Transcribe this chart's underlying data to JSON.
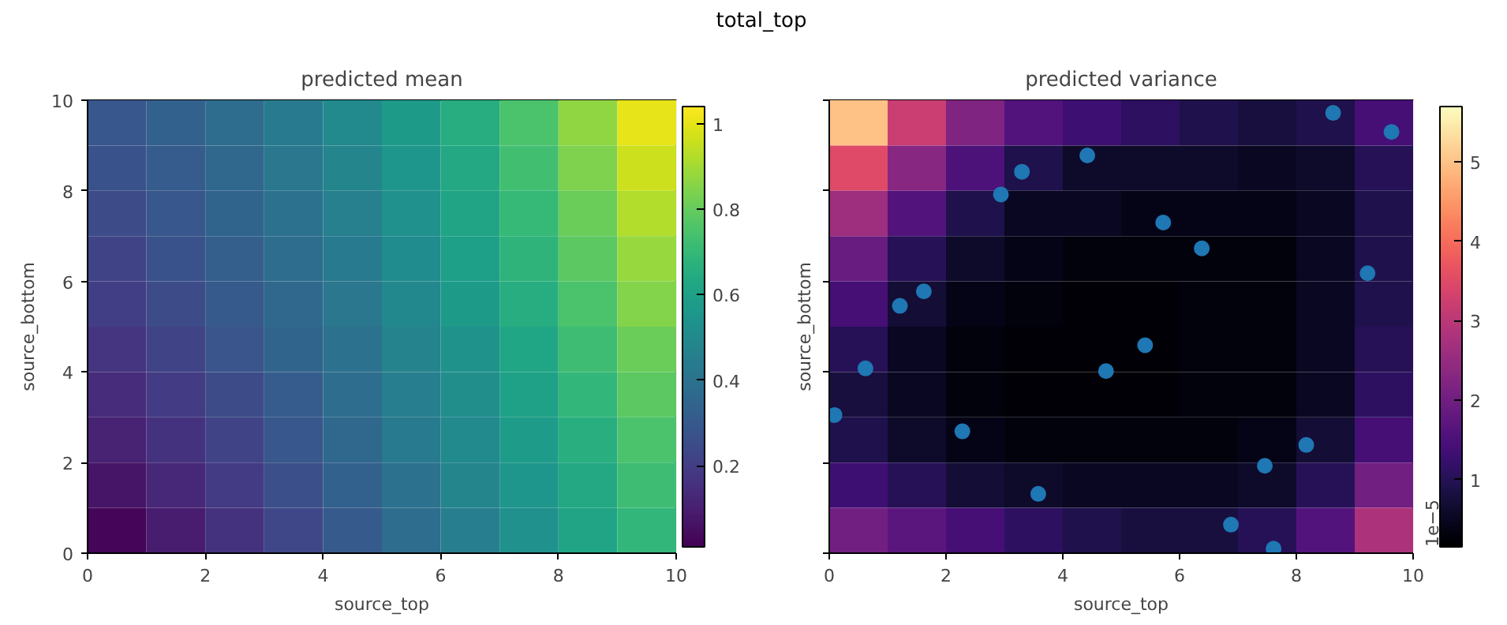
{
  "chart_data": [
    {
      "type": "heatmap",
      "title": "predicted mean",
      "xlabel": "source_top",
      "ylabel": "source_bottom",
      "annotations": [
        "total_top"
      ],
      "cells": [
        [
          0.29,
          0.33,
          0.38,
          0.44,
          0.5,
          0.57,
          0.65,
          0.75,
          0.87,
          1.0
        ],
        [
          0.27,
          0.31,
          0.36,
          0.42,
          0.48,
          0.55,
          0.63,
          0.73,
          0.84,
          0.96
        ],
        [
          0.25,
          0.29,
          0.34,
          0.4,
          0.46,
          0.53,
          0.61,
          0.7,
          0.81,
          0.92
        ],
        [
          0.22,
          0.27,
          0.32,
          0.38,
          0.44,
          0.51,
          0.59,
          0.68,
          0.78,
          0.88
        ],
        [
          0.2,
          0.25,
          0.3,
          0.36,
          0.42,
          0.49,
          0.57,
          0.65,
          0.75,
          0.85
        ],
        [
          0.17,
          0.22,
          0.28,
          0.34,
          0.4,
          0.47,
          0.54,
          0.62,
          0.72,
          0.81
        ],
        [
          0.14,
          0.19,
          0.25,
          0.31,
          0.38,
          0.45,
          0.52,
          0.6,
          0.69,
          0.78
        ],
        [
          0.11,
          0.16,
          0.22,
          0.29,
          0.36,
          0.43,
          0.5,
          0.58,
          0.66,
          0.75
        ],
        [
          0.07,
          0.13,
          0.19,
          0.26,
          0.33,
          0.4,
          0.48,
          0.55,
          0.63,
          0.72
        ],
        [
          0.03,
          0.09,
          0.16,
          0.23,
          0.3,
          0.38,
          0.45,
          0.53,
          0.61,
          0.69
        ]
      ],
      "clim": [
        0.01,
        1.04
      ],
      "cticks": [
        0.2,
        0.4,
        0.6,
        0.8,
        1.0
      ],
      "xlim": [
        0,
        10
      ],
      "xticks": [
        0,
        2,
        4,
        6,
        8,
        10
      ],
      "ylim": [
        0,
        10
      ],
      "yticks": [
        0,
        2,
        4,
        6,
        8,
        10
      ]
    },
    {
      "type": "heatmap",
      "title": "predicted variance",
      "xlabel": "source_top",
      "ylabel": "source_bottom",
      "clabel": "1e−5",
      "tick_labels": "x",
      "cells": [
        [
          5.0,
          3.2,
          2.2,
          1.6,
          1.3,
          1.1,
          0.9,
          0.8,
          0.9,
          1.4
        ],
        [
          3.5,
          2.3,
          1.5,
          0.9,
          0.6,
          0.6,
          0.6,
          0.5,
          0.6,
          1.0
        ],
        [
          2.6,
          1.6,
          0.9,
          0.5,
          0.5,
          0.4,
          0.4,
          0.4,
          0.5,
          0.9
        ],
        [
          1.9,
          1.0,
          0.6,
          0.4,
          0.3,
          0.3,
          0.3,
          0.3,
          0.5,
          0.9
        ],
        [
          1.4,
          0.7,
          0.4,
          0.3,
          0.2,
          0.2,
          0.3,
          0.3,
          0.5,
          0.9
        ],
        [
          1.0,
          0.5,
          0.3,
          0.2,
          0.2,
          0.2,
          0.3,
          0.3,
          0.5,
          1.0
        ],
        [
          0.8,
          0.5,
          0.3,
          0.2,
          0.2,
          0.2,
          0.3,
          0.3,
          0.5,
          1.1
        ],
        [
          0.9,
          0.6,
          0.4,
          0.3,
          0.3,
          0.3,
          0.3,
          0.4,
          0.7,
          1.4
        ],
        [
          1.3,
          1.0,
          0.7,
          0.6,
          0.5,
          0.5,
          0.5,
          0.6,
          1.0,
          2.0
        ],
        [
          2.0,
          1.7,
          1.4,
          1.1,
          0.9,
          0.8,
          0.8,
          1.0,
          1.6,
          2.8
        ]
      ],
      "clim": [
        0.15,
        5.7
      ],
      "cticks": [
        1,
        2,
        3,
        4,
        5
      ],
      "series": [
        {
          "type": "scatter",
          "color": "#1f77b4",
          "x": [
            8.63,
            9.63,
            4.42,
            3.3,
            2.94,
            5.72,
            6.38,
            9.22,
            1.62,
            1.21,
            5.41,
            4.74,
            0.62,
            0.09,
            2.28,
            8.17,
            7.46,
            3.58,
            6.88,
            7.61
          ],
          "values": [
            9.72,
            9.3,
            8.78,
            8.42,
            7.92,
            7.3,
            6.73,
            6.18,
            5.78,
            5.46,
            4.59,
            4.02,
            4.08,
            3.05,
            2.69,
            2.39,
            1.93,
            1.31,
            0.63,
            0.1
          ]
        }
      ],
      "xlim": [
        0,
        10
      ],
      "xticks": [
        0,
        2,
        4,
        6,
        8,
        10
      ],
      "ylim": [
        0,
        10
      ],
      "yticks": [
        0,
        2,
        4,
        6,
        8,
        10
      ]
    }
  ]
}
